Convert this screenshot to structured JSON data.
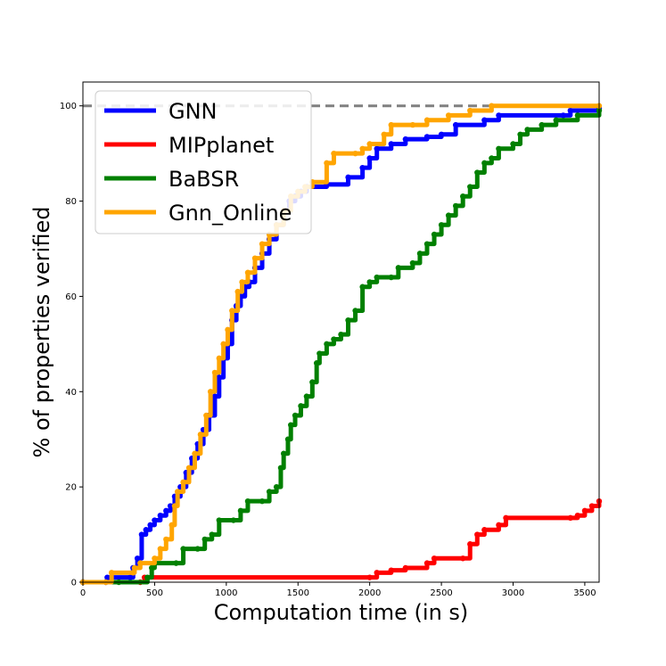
{
  "chart_data": {
    "type": "line",
    "xlabel": "Computation time (in s)",
    "ylabel": "% of properties verified",
    "xlim": [
      0,
      3600
    ],
    "ylim": [
      0,
      105
    ],
    "xticks": [
      0,
      500,
      1000,
      1500,
      2000,
      2500,
      3000,
      3500
    ],
    "yticks": [
      0,
      20,
      40,
      60,
      80,
      100
    ],
    "reference_line": {
      "y": 100,
      "style": "dashed",
      "color": "#808080"
    },
    "legend_position": "top-left",
    "grid": false,
    "series": [
      {
        "name": "GNN",
        "color": "#0000ff",
        "points": [
          [
            0,
            0
          ],
          [
            160,
            0
          ],
          [
            170,
            1
          ],
          [
            330,
            1
          ],
          [
            350,
            3
          ],
          [
            380,
            5
          ],
          [
            410,
            10
          ],
          [
            440,
            11
          ],
          [
            470,
            12
          ],
          [
            500,
            13
          ],
          [
            540,
            14
          ],
          [
            580,
            15
          ],
          [
            610,
            16
          ],
          [
            640,
            18
          ],
          [
            680,
            20
          ],
          [
            720,
            23
          ],
          [
            760,
            26
          ],
          [
            800,
            29
          ],
          [
            840,
            32
          ],
          [
            880,
            35
          ],
          [
            920,
            39
          ],
          [
            950,
            43
          ],
          [
            980,
            47
          ],
          [
            1010,
            50
          ],
          [
            1040,
            55
          ],
          [
            1070,
            58
          ],
          [
            1100,
            60
          ],
          [
            1130,
            62
          ],
          [
            1160,
            63
          ],
          [
            1200,
            66
          ],
          [
            1250,
            69
          ],
          [
            1300,
            72
          ],
          [
            1350,
            75
          ],
          [
            1400,
            78
          ],
          [
            1440,
            80
          ],
          [
            1480,
            81
          ],
          [
            1520,
            82
          ],
          [
            1560,
            83
          ],
          [
            1700,
            83.5
          ],
          [
            1850,
            85
          ],
          [
            1950,
            87
          ],
          [
            2000,
            89
          ],
          [
            2050,
            91
          ],
          [
            2150,
            92
          ],
          [
            2250,
            93
          ],
          [
            2400,
            93.5
          ],
          [
            2500,
            94
          ],
          [
            2600,
            96
          ],
          [
            2800,
            97
          ],
          [
            2900,
            98
          ],
          [
            3350,
            98
          ],
          [
            3400,
            99
          ],
          [
            3600,
            99.5
          ]
        ]
      },
      {
        "name": "MIPplanet",
        "color": "#ff0000",
        "points": [
          [
            0,
            0
          ],
          [
            400,
            0
          ],
          [
            430,
            1
          ],
          [
            2000,
            1
          ],
          [
            2050,
            2
          ],
          [
            2150,
            2.5
          ],
          [
            2250,
            3
          ],
          [
            2400,
            4
          ],
          [
            2450,
            5
          ],
          [
            2650,
            5
          ],
          [
            2700,
            8
          ],
          [
            2750,
            10
          ],
          [
            2800,
            11
          ],
          [
            2900,
            12
          ],
          [
            2950,
            13.5
          ],
          [
            3400,
            13.5
          ],
          [
            3450,
            14
          ],
          [
            3500,
            15
          ],
          [
            3550,
            16
          ],
          [
            3600,
            17
          ]
        ]
      },
      {
        "name": "BaBSR",
        "color": "#008000",
        "points": [
          [
            0,
            0
          ],
          [
            250,
            0
          ],
          [
            450,
            1
          ],
          [
            480,
            3
          ],
          [
            500,
            4
          ],
          [
            650,
            4
          ],
          [
            700,
            7
          ],
          [
            800,
            7
          ],
          [
            850,
            9
          ],
          [
            900,
            10
          ],
          [
            950,
            13
          ],
          [
            1050,
            13
          ],
          [
            1100,
            15
          ],
          [
            1150,
            17
          ],
          [
            1250,
            17
          ],
          [
            1300,
            19
          ],
          [
            1350,
            20
          ],
          [
            1380,
            24
          ],
          [
            1400,
            27
          ],
          [
            1430,
            30
          ],
          [
            1450,
            33
          ],
          [
            1480,
            35
          ],
          [
            1520,
            37
          ],
          [
            1560,
            39
          ],
          [
            1600,
            42
          ],
          [
            1630,
            46
          ],
          [
            1650,
            48
          ],
          [
            1700,
            50
          ],
          [
            1750,
            51
          ],
          [
            1800,
            52
          ],
          [
            1850,
            55
          ],
          [
            1900,
            57
          ],
          [
            1950,
            62
          ],
          [
            2000,
            63
          ],
          [
            2050,
            64
          ],
          [
            2150,
            64
          ],
          [
            2200,
            66
          ],
          [
            2300,
            67
          ],
          [
            2350,
            69
          ],
          [
            2400,
            71
          ],
          [
            2450,
            73
          ],
          [
            2500,
            75
          ],
          [
            2550,
            77
          ],
          [
            2600,
            79
          ],
          [
            2650,
            81
          ],
          [
            2700,
            83
          ],
          [
            2750,
            86
          ],
          [
            2800,
            88
          ],
          [
            2850,
            89
          ],
          [
            2900,
            91
          ],
          [
            3000,
            92
          ],
          [
            3050,
            94
          ],
          [
            3100,
            95
          ],
          [
            3200,
            96
          ],
          [
            3300,
            97
          ],
          [
            3450,
            98
          ],
          [
            3600,
            99
          ]
        ]
      },
      {
        "name": "Gnn_Online",
        "color": "#ffa500",
        "points": [
          [
            0,
            0
          ],
          [
            160,
            0
          ],
          [
            200,
            2
          ],
          [
            350,
            2
          ],
          [
            360,
            3
          ],
          [
            400,
            4
          ],
          [
            500,
            5
          ],
          [
            540,
            7
          ],
          [
            580,
            9
          ],
          [
            620,
            12
          ],
          [
            640,
            16
          ],
          [
            660,
            19
          ],
          [
            700,
            21
          ],
          [
            740,
            24
          ],
          [
            780,
            27
          ],
          [
            820,
            31
          ],
          [
            860,
            35
          ],
          [
            890,
            40
          ],
          [
            920,
            44
          ],
          [
            950,
            47
          ],
          [
            980,
            50
          ],
          [
            1010,
            53
          ],
          [
            1040,
            57
          ],
          [
            1080,
            61
          ],
          [
            1110,
            63
          ],
          [
            1150,
            65
          ],
          [
            1200,
            68
          ],
          [
            1250,
            71
          ],
          [
            1300,
            73
          ],
          [
            1350,
            75
          ],
          [
            1400,
            78
          ],
          [
            1450,
            81
          ],
          [
            1500,
            82
          ],
          [
            1550,
            83
          ],
          [
            1600,
            84
          ],
          [
            1700,
            88
          ],
          [
            1750,
            90
          ],
          [
            1900,
            90
          ],
          [
            1950,
            91
          ],
          [
            2000,
            92
          ],
          [
            2100,
            94
          ],
          [
            2150,
            96
          ],
          [
            2300,
            96
          ],
          [
            2400,
            97
          ],
          [
            2550,
            98
          ],
          [
            2700,
            99
          ],
          [
            2850,
            100
          ],
          [
            3600,
            100
          ]
        ]
      }
    ]
  }
}
